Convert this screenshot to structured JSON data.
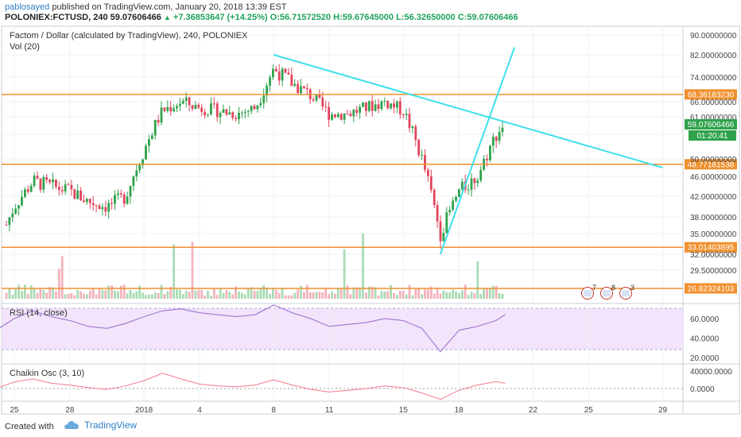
{
  "header": {
    "author": "pablosayed",
    "published": "published on TradingView.com, January 20, 2018 13:39 EST",
    "symbol": "POLONIEX:FCTUSD, 240",
    "last": "59.07606466",
    "change": "+7.36853647 (+14.25%)",
    "open": "O:56.71572520",
    "high": "H:59.67645000",
    "low": "L:56.32650000",
    "close": "C:59.07606466"
  },
  "legend": {
    "title": "Factom / Dollar (calculated by TradingView), 240, POLONIEX",
    "volume": "Vol (20)",
    "rsi": "RSI (14, close)",
    "chaikin": "Chaikin Osc (3, 10)"
  },
  "footer": {
    "created_with": "Created with",
    "brand": "TradingView"
  },
  "colors": {
    "up": "#2fa24b",
    "down": "#e2445c",
    "trend": "#3ee0ea",
    "level": "#f0902e",
    "rsi_bg": "#f1e4fb",
    "rsi_line": "#9966cc",
    "chaikin_line": "#f27a8c"
  },
  "chart_data": {
    "type": "candlestick",
    "title": "Factom / Dollar (calculated by TradingView), 240, POLONIEX",
    "interval": "240",
    "ylim": [
      26,
      92
    ],
    "y_ticks": [
      "90.00000000",
      "82.00000000",
      "74.00000000",
      "66.00000000",
      "61.00000000",
      "56.00000000",
      "50.00000000",
      "46.00000000",
      "42.00000000",
      "38.00000000",
      "35.00000000",
      "32.00000000",
      "29.50000000"
    ],
    "x_ticks": [
      "25",
      "28",
      "2018",
      "4",
      "8",
      "11",
      "15",
      "18",
      "22",
      "25",
      "29"
    ],
    "last_price_label": "59.07606466",
    "countdown_label": "01:20:41",
    "horizontal_levels": [
      {
        "value": 68.3618323,
        "label": "68.36183230"
      },
      {
        "value": 48.77181538,
        "label": "48.77181538"
      },
      {
        "value": 33.01403895,
        "label": "33.01403895"
      },
      {
        "value": 26.82324103,
        "label": "26.82324103"
      }
    ],
    "trend_lines": [
      {
        "from": {
          "date": "2018-01-08",
          "price": 82
        },
        "to": {
          "date": "2018-01-29",
          "price": 48
        }
      },
      {
        "from": {
          "date": "2018-01-17",
          "price": 32
        },
        "to": {
          "date": "2018-01-21",
          "price": 95
        }
      }
    ],
    "price_path": [
      {
        "date": "2017-12-24",
        "price": 32
      },
      {
        "date": "2017-12-25",
        "price": 40
      },
      {
        "date": "2017-12-26",
        "price": 45
      },
      {
        "date": "2017-12-27",
        "price": 44
      },
      {
        "date": "2017-12-28",
        "price": 43
      },
      {
        "date": "2017-12-29",
        "price": 41
      },
      {
        "date": "2017-12-30",
        "price": 40
      },
      {
        "date": "2017-12-31",
        "price": 42
      },
      {
        "date": "2018-01-01",
        "price": 52
      },
      {
        "date": "2018-01-02",
        "price": 63
      },
      {
        "date": "2018-01-03",
        "price": 66
      },
      {
        "date": "2018-01-04",
        "price": 64
      },
      {
        "date": "2018-01-05",
        "price": 63
      },
      {
        "date": "2018-01-06",
        "price": 62
      },
      {
        "date": "2018-01-07",
        "price": 64
      },
      {
        "date": "2018-01-08",
        "price": 77
      },
      {
        "date": "2018-01-09",
        "price": 72
      },
      {
        "date": "2018-01-10",
        "price": 68
      },
      {
        "date": "2018-01-11",
        "price": 62
      },
      {
        "date": "2018-01-12",
        "price": 62
      },
      {
        "date": "2018-01-13",
        "price": 64
      },
      {
        "date": "2018-01-14",
        "price": 66
      },
      {
        "date": "2018-01-15",
        "price": 63
      },
      {
        "date": "2018-01-16",
        "price": 50
      },
      {
        "date": "2018-01-17",
        "price": 35
      },
      {
        "date": "2018-01-18",
        "price": 43
      },
      {
        "date": "2018-01-19",
        "price": 46
      },
      {
        "date": "2018-01-20",
        "price": 56
      },
      {
        "date": "2018-01-20T12:00",
        "price": 59.08
      }
    ],
    "indicators": {
      "volume": {
        "name": "Vol (20)"
      },
      "rsi": {
        "name": "RSI (14, close)",
        "ticks": [
          "60.0000",
          "40.0000",
          "20.0000"
        ],
        "band": [
          30,
          70
        ],
        "values": [
          48,
          60,
          68,
          62,
          58,
          52,
          50,
          55,
          62,
          68,
          70,
          66,
          64,
          62,
          64,
          74,
          66,
          60,
          52,
          54,
          56,
          60,
          58,
          50,
          26,
          48,
          52,
          58,
          64
        ]
      },
      "chaikin": {
        "name": "Chaikin Osc (3, 10)",
        "ticks": [
          "40000.0000",
          "0.0000"
        ],
        "values": [
          0,
          15000,
          22000,
          12000,
          8000,
          2000,
          -2000,
          6000,
          18000,
          35000,
          22000,
          10000,
          6000,
          4000,
          8000,
          20000,
          8000,
          -2000,
          -8000,
          -4000,
          0,
          6000,
          2000,
          -10000,
          -25000,
          -4000,
          8000,
          16000,
          12000
        ]
      }
    },
    "event_badges": [
      "7",
      "8",
      "3"
    ]
  }
}
